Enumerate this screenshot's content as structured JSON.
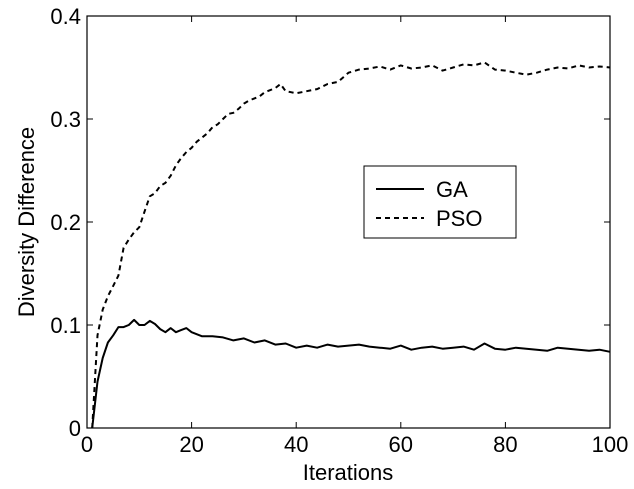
{
  "chart_data": {
    "type": "line",
    "xlabel": "Iterations",
    "ylabel": "Diversity Difference",
    "xlim": [
      0,
      100
    ],
    "ylim": [
      0,
      0.4
    ],
    "xticks": [
      0,
      20,
      40,
      60,
      80,
      100
    ],
    "yticks": [
      0,
      0.1,
      0.2,
      0.3,
      0.4
    ],
    "xtick_labels": [
      "0",
      "20",
      "40",
      "60",
      "80",
      "100"
    ],
    "ytick_labels": [
      "0",
      "0.1",
      "0.2",
      "0.3",
      "0.4"
    ],
    "grid": false,
    "legend_position": "center-right",
    "series": [
      {
        "name": "GA",
        "style": "solid",
        "color": "#000000",
        "x": [
          1,
          2,
          3,
          4,
          5,
          6,
          7,
          8,
          9,
          10,
          11,
          12,
          13,
          14,
          15,
          16,
          17,
          18,
          19,
          20,
          22,
          24,
          26,
          28,
          30,
          32,
          34,
          36,
          38,
          40,
          42,
          44,
          46,
          48,
          50,
          52,
          54,
          56,
          58,
          60,
          62,
          64,
          66,
          68,
          70,
          72,
          74,
          76,
          78,
          80,
          82,
          84,
          86,
          88,
          90,
          92,
          94,
          96,
          98,
          100
        ],
        "y": [
          0,
          0.045,
          0.068,
          0.083,
          0.09,
          0.098,
          0.098,
          0.1,
          0.105,
          0.1,
          0.1,
          0.104,
          0.101,
          0.096,
          0.093,
          0.097,
          0.093,
          0.095,
          0.097,
          0.093,
          0.089,
          0.089,
          0.088,
          0.085,
          0.087,
          0.083,
          0.085,
          0.081,
          0.082,
          0.078,
          0.08,
          0.078,
          0.081,
          0.079,
          0.08,
          0.081,
          0.079,
          0.078,
          0.077,
          0.08,
          0.076,
          0.078,
          0.079,
          0.077,
          0.078,
          0.079,
          0.076,
          0.082,
          0.077,
          0.076,
          0.078,
          0.077,
          0.076,
          0.075,
          0.078,
          0.077,
          0.076,
          0.075,
          0.076,
          0.074
        ]
      },
      {
        "name": "PSO",
        "style": "dashed",
        "color": "#000000",
        "x": [
          1,
          2,
          3,
          4,
          5,
          6,
          7,
          8,
          9,
          10,
          11,
          12,
          13,
          14,
          15,
          16,
          17,
          18,
          19,
          20,
          21,
          22,
          23,
          24,
          25,
          26,
          27,
          28,
          29,
          30,
          31,
          32,
          33,
          34,
          35,
          36,
          37,
          38,
          39,
          40,
          42,
          44,
          46,
          48,
          50,
          52,
          54,
          56,
          58,
          60,
          62,
          64,
          66,
          68,
          70,
          72,
          74,
          76,
          78,
          80,
          82,
          84,
          86,
          88,
          90,
          92,
          94,
          96,
          98,
          100
        ],
        "y": [
          0,
          0.09,
          0.115,
          0.128,
          0.138,
          0.148,
          0.175,
          0.183,
          0.19,
          0.195,
          0.21,
          0.225,
          0.228,
          0.235,
          0.238,
          0.245,
          0.255,
          0.262,
          0.268,
          0.272,
          0.278,
          0.282,
          0.286,
          0.292,
          0.295,
          0.3,
          0.305,
          0.306,
          0.31,
          0.315,
          0.318,
          0.32,
          0.322,
          0.326,
          0.328,
          0.33,
          0.334,
          0.327,
          0.326,
          0.325,
          0.327,
          0.329,
          0.334,
          0.336,
          0.345,
          0.348,
          0.349,
          0.351,
          0.348,
          0.352,
          0.349,
          0.35,
          0.352,
          0.347,
          0.35,
          0.353,
          0.352,
          0.355,
          0.348,
          0.347,
          0.345,
          0.343,
          0.345,
          0.348,
          0.35,
          0.349,
          0.352,
          0.35,
          0.351,
          0.35
        ]
      }
    ]
  }
}
